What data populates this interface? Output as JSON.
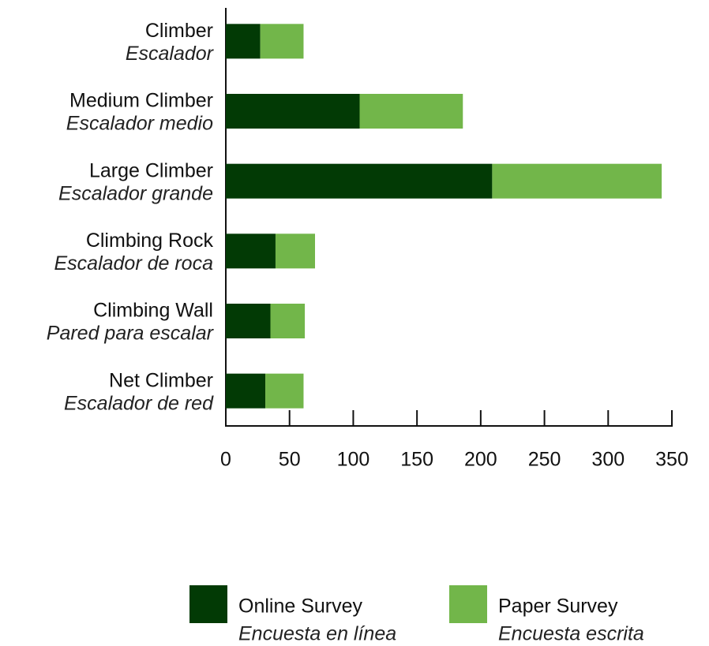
{
  "chart_data": {
    "type": "bar",
    "orientation": "horizontal",
    "stacked": true,
    "categories": [
      "Climber",
      "Medium Climber",
      "Large Climber",
      "Climbing Rock",
      "Climbing Wall",
      "Net Climber"
    ],
    "category_subtitles": [
      "Escalador",
      "Escalador medio",
      "Escalador grande",
      "Escalador de roca",
      "Pared para escalar",
      "Escalador de red"
    ],
    "series": [
      {
        "name": "Online Survey",
        "subtitle": "Encuesta en línea",
        "color": "#023a05",
        "values": [
          27,
          105,
          209,
          39,
          35,
          31
        ]
      },
      {
        "name": "Paper Survey",
        "subtitle": "Encuesta escrita",
        "color": "#72b64a",
        "values": [
          34,
          81,
          133,
          31,
          27,
          30
        ]
      }
    ],
    "xlim": [
      0,
      350
    ],
    "xticks": [
      0,
      50,
      100,
      150,
      200,
      250,
      300,
      350
    ],
    "grid": false,
    "legend": "bottom"
  }
}
